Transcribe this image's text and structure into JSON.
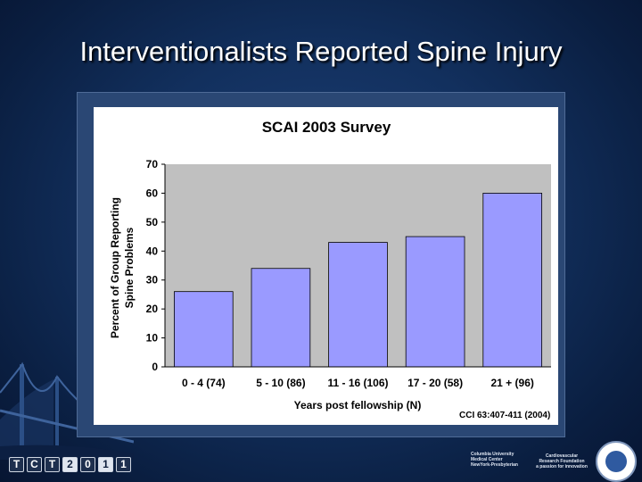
{
  "slide": {
    "title": "Interventionalists Reported Spine Injury",
    "citation": "CCI 63:407-411 (2004)"
  },
  "footer": {
    "tct_logo": [
      "T",
      "C",
      "T",
      "2",
      "0",
      "1",
      "1"
    ],
    "sponsor_1_lines": [
      "Columbia University",
      "Medical Center",
      "NewYork-Presbyterian"
    ],
    "sponsor_2_lines": [
      "Cardiovascular",
      "Research Foundation",
      "a passion for innovation"
    ]
  },
  "colors": {
    "bar_fill": "#9a9aff",
    "plot_background": "#c0c0c0",
    "slide_background": "#12305e"
  },
  "chart_data": {
    "type": "bar",
    "title": "SCAI 2003 Survey",
    "xlabel": "Years post fellowship (N)",
    "ylabel_lines": [
      "Percent of Group Reporting",
      "Spine Problems"
    ],
    "categories": [
      "0 - 4 (74)",
      "5 - 10 (86)",
      "11 - 16 (106)",
      "17 - 20 (58)",
      "21 + (96)"
    ],
    "values": [
      26,
      34,
      43,
      45,
      60
    ],
    "ylim": [
      0,
      70
    ],
    "yticks": [
      "0",
      "10",
      "20",
      "30",
      "40",
      "50",
      "60",
      "70"
    ],
    "grid": false,
    "legend": "none"
  }
}
